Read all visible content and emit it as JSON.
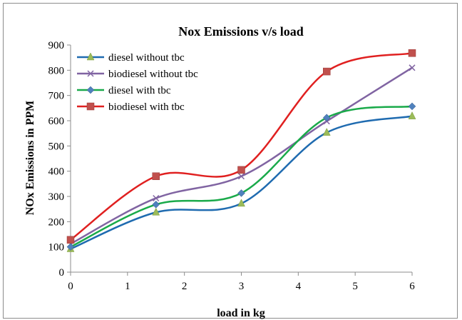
{
  "chart_data": {
    "type": "line",
    "title": "Nox Emissions v/s load",
    "xlabel": "load in kg",
    "ylabel": "NOx Emissions in  PPM",
    "xlim": [
      0,
      6
    ],
    "ylim": [
      0,
      900
    ],
    "xticks": [
      "0",
      "1",
      "2",
      "3",
      "4",
      "5",
      "6"
    ],
    "yticks": [
      "0",
      "100",
      "200",
      "300",
      "400",
      "500",
      "600",
      "700",
      "800",
      "900"
    ],
    "x": [
      0,
      1.5,
      3,
      4.5,
      6
    ],
    "legend_position": "top-left",
    "smooth": true,
    "grid": false,
    "series": [
      {
        "name": "diesel without tbc",
        "values": [
          92,
          237,
          272,
          553,
          618
        ],
        "color": "#9bbb59",
        "line_color": "#1f6bb0",
        "marker": "triangle"
      },
      {
        "name": "biodiesel without tbc",
        "values": [
          112,
          293,
          380,
          598,
          810
        ],
        "color": "#8064a2",
        "line_color": "#8064a2",
        "marker": "x"
      },
      {
        "name": "diesel with tbc",
        "values": [
          100,
          268,
          313,
          612,
          657
        ],
        "color": "#4f81bd",
        "line_color": "#1aaa4a",
        "marker": "diamond"
      },
      {
        "name": "biodiesel with tbc",
        "values": [
          128,
          380,
          405,
          795,
          868
        ],
        "color": "#c0504d",
        "line_color": "#e02020",
        "marker": "square"
      }
    ]
  }
}
